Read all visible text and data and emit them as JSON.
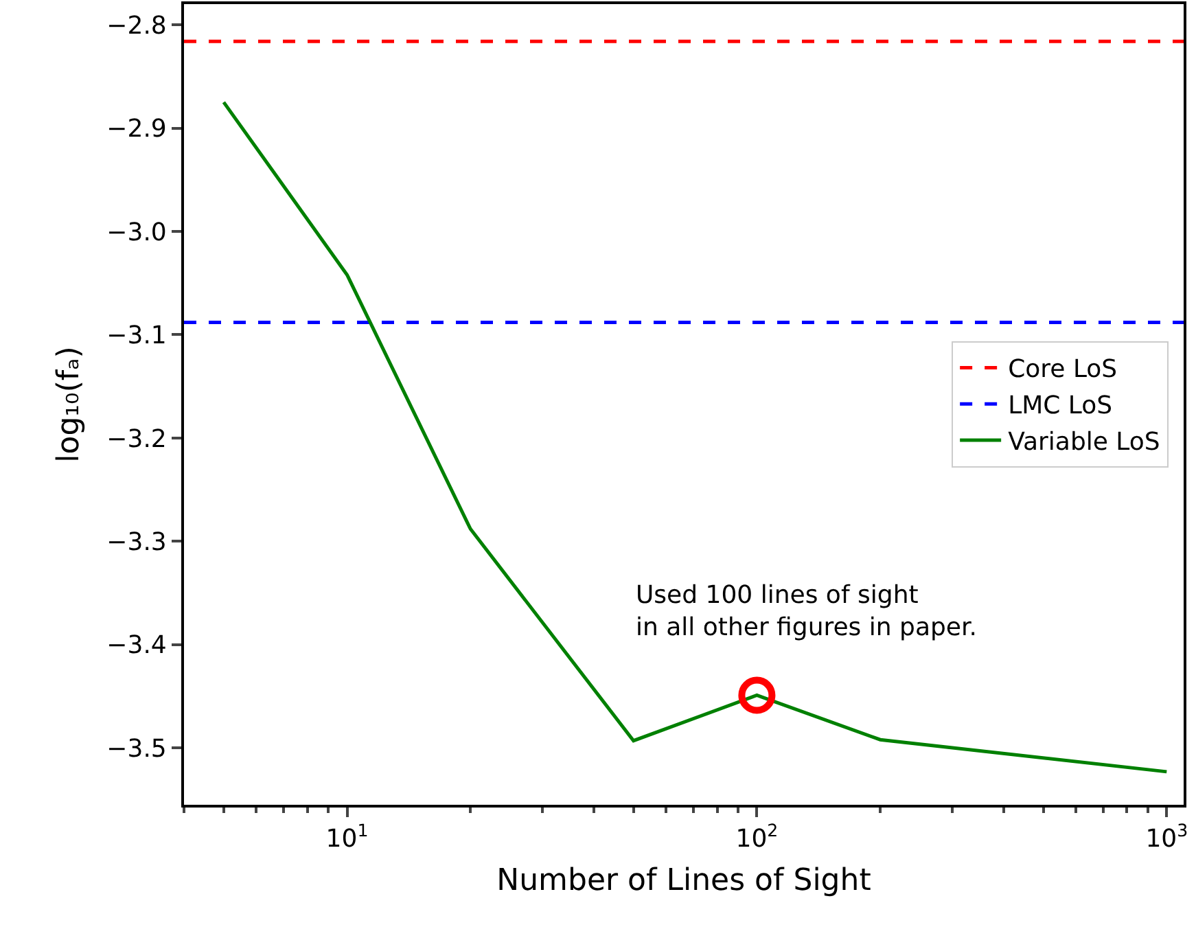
{
  "chart_data": {
    "type": "line",
    "xlabel": "Number of Lines of Sight",
    "ylabel": "log₁₀(fₐ)",
    "log": "x",
    "x": [
      5,
      10,
      20,
      50,
      100,
      200,
      1000
    ],
    "series": [
      {
        "name": "Variable LoS",
        "color": "#008000",
        "values": [
          -2.875,
          -3.042,
          -3.288,
          -3.493,
          -3.449,
          -3.492,
          -3.523
        ]
      },
      {
        "type": "scatter",
        "color": "#ff0000",
        "marker": "circle",
        "x": [
          100
        ],
        "values": [
          -3.449
        ]
      }
    ],
    "ref_lines": [
      {
        "axis": "y",
        "value": -2.816,
        "label": "Core LoS",
        "color": "#ff0000",
        "line_style": "dashed"
      },
      {
        "axis": "y",
        "value": -3.088,
        "label": "LMC LoS",
        "color": "#0000ff",
        "line_style": "dashed"
      }
    ],
    "annotations": [
      "Used 100 lines of sight\nin all other figures in paper."
    ],
    "xlim": [
      4,
      1100
    ],
    "ylim": [
      -3.555,
      -2.78
    ],
    "xticks": [
      {
        "value": 10,
        "label": "10$^{1}$"
      },
      {
        "value": 100,
        "label": "10$^{2}$"
      },
      {
        "value": 1000,
        "label": "10$^{3}$"
      }
    ],
    "yticks": [
      {
        "value": -3.5,
        "label": "−3.5"
      },
      {
        "value": -3.4,
        "label": "−3.4"
      },
      {
        "value": -3.3,
        "label": "−3.3"
      },
      {
        "value": -3.2,
        "label": "−3.2"
      },
      {
        "value": -3.1,
        "label": "−3.1"
      },
      {
        "value": -3.0,
        "label": "−3.0"
      },
      {
        "value": -2.9,
        "label": "−2.9"
      },
      {
        "value": -2.8,
        "label": "−2.8"
      }
    ],
    "grid": false,
    "legend": "right",
    "line_style": "solid",
    "marker": "none"
  }
}
